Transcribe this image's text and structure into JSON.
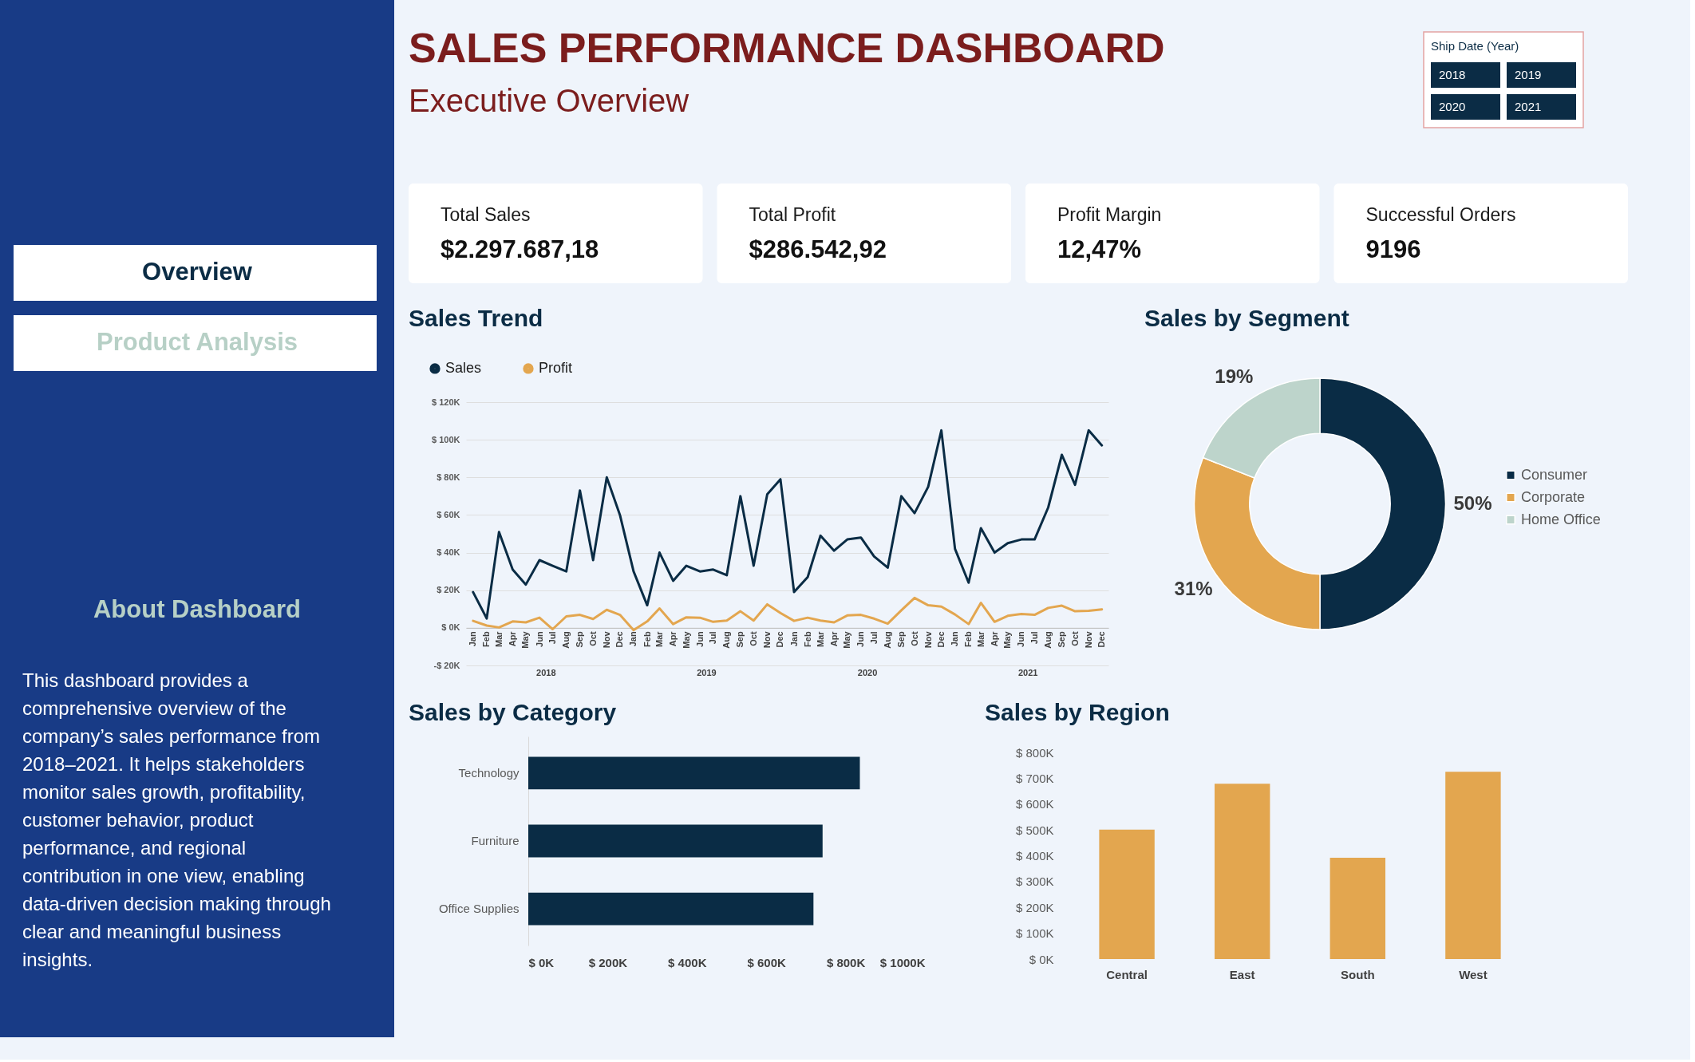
{
  "chart_data": [
    {
      "type": "other",
      "categories": [
        "Overview",
        "Product Analysis"
      ]
    },
    {
      "type": "other",
      "title": "About Dashboard",
      "annotations": [
        "This dashboard provides a comprehensive overview of the company’s sales performance from 2018–2021. It helps stakeholders monitor sales growth, profitability, customer behavior, product performance, and regional contribution in one view, enabling data-driven decision making through clear and meaningful business insights."
      ]
    },
    {
      "type": "other",
      "title": "SALES PERFORMANCE DASHBOARD",
      "subtitle": "Executive Overview"
    },
    {
      "type": "other",
      "title": "Ship Date (Year)",
      "categories": [
        "2018",
        "2019",
        "2020",
        "2021"
      ]
    },
    {
      "type": "other",
      "categories": [
        "Total Sales",
        "Total Profit",
        "Profit Margin",
        "Successful Orders"
      ],
      "value_labels": [
        "$2.297.687,18",
        "$286.542,92",
        "12,47%",
        "9196"
      ]
    },
    {
      "type": "line",
      "title": "Sales Trend",
      "legend": "top left",
      "grid": "y",
      "x": [
        "2018-01",
        "2018-02",
        "2018-03",
        "2018-04",
        "2018-05",
        "2018-06",
        "2018-07",
        "2018-08",
        "2018-09",
        "2018-10",
        "2018-11",
        "2018-12",
        "2019-01",
        "2019-02",
        "2019-03",
        "2019-04",
        "2019-05",
        "2019-06",
        "2019-07",
        "2019-08",
        "2019-09",
        "2019-10",
        "2019-11",
        "2019-12",
        "2020-01",
        "2020-02",
        "2020-03",
        "2020-04",
        "2020-05",
        "2020-06",
        "2020-07",
        "2020-08",
        "2020-09",
        "2020-10",
        "2020-11",
        "2020-12",
        "2021-01",
        "2021-02",
        "2021-03",
        "2021-04",
        "2021-05",
        "2021-06",
        "2021-07",
        "2021-08",
        "2021-09",
        "2021-10",
        "2021-11",
        "2021-12"
      ],
      "xlim": [
        "2017-12-16",
        "2021-12-16"
      ],
      "xticks": [
        {
          "value": "2018-01",
          "label": "Jan"
        },
        {
          "value": "2018-02",
          "label": "Feb"
        },
        {
          "value": "2018-03",
          "label": "Mar"
        },
        {
          "value": "2018-04",
          "label": "Apr"
        },
        {
          "value": "2018-05",
          "label": "May"
        },
        {
          "value": "2018-06",
          "label": "Jun"
        },
        {
          "value": "2018-07",
          "label": "Jul"
        },
        {
          "value": "2018-08",
          "label": "Aug"
        },
        {
          "value": "2018-09",
          "label": "Sep"
        },
        {
          "value": "2018-10",
          "label": "Oct"
        },
        {
          "value": "2018-11",
          "label": "Nov"
        },
        {
          "value": "2018-12",
          "label": "Dec"
        },
        {
          "value": "2019-01",
          "label": "Jan"
        },
        {
          "value": "2019-02",
          "label": "Feb"
        },
        {
          "value": "2019-03",
          "label": "Mar"
        },
        {
          "value": "2019-04",
          "label": "Apr"
        },
        {
          "value": "2019-05",
          "label": "May"
        },
        {
          "value": "2019-06",
          "label": "Jun"
        },
        {
          "value": "2019-07",
          "label": "Jul"
        },
        {
          "value": "2019-08",
          "label": "Aug"
        },
        {
          "value": "2019-09",
          "label": "Sep"
        },
        {
          "value": "2019-10",
          "label": "Oct"
        },
        {
          "value": "2019-11",
          "label": "Nov"
        },
        {
          "value": "2019-12",
          "label": "Dec"
        },
        {
          "value": "2020-01",
          "label": "Jan"
        },
        {
          "value": "2020-02",
          "label": "Feb"
        },
        {
          "value": "2020-03",
          "label": "Mar"
        },
        {
          "value": "2020-04",
          "label": "Apr"
        },
        {
          "value": "2020-05",
          "label": "May"
        },
        {
          "value": "2020-06",
          "label": "Jun"
        },
        {
          "value": "2020-07",
          "label": "Jul"
        },
        {
          "value": "2020-08",
          "label": "Aug"
        },
        {
          "value": "2020-09",
          "label": "Sep"
        },
        {
          "value": "2020-10",
          "label": "Oct"
        },
        {
          "value": "2020-11",
          "label": "Nov"
        },
        {
          "value": "2020-12",
          "label": "Dec"
        },
        {
          "value": "2021-01",
          "label": "Jan"
        },
        {
          "value": "2021-02",
          "label": "Feb"
        },
        {
          "value": "2021-03",
          "label": "Mar"
        },
        {
          "value": "2021-04",
          "label": "Apr"
        },
        {
          "value": "2021-05",
          "label": "May"
        },
        {
          "value": "2021-06",
          "label": "Jun"
        },
        {
          "value": "2021-07",
          "label": "Jul"
        },
        {
          "value": "2021-08",
          "label": "Aug"
        },
        {
          "value": "2021-09",
          "label": "Sep"
        },
        {
          "value": "2021-10",
          "label": "Oct"
        },
        {
          "value": "2021-11",
          "label": "Nov"
        },
        {
          "value": "2021-12",
          "label": "Dec"
        }
      ],
      "x2lim": [
        "2017-12-16",
        "2021-12-16"
      ],
      "x2ticks": [
        {
          "value": "2018-06-16",
          "label": "2018"
        },
        {
          "value": "2019-06-16",
          "label": "2019"
        },
        {
          "value": "2020-06-16",
          "label": "2020"
        },
        {
          "value": "2021-06-16",
          "label": "2021"
        }
      ],
      "ylim": [
        -20000,
        120000
      ],
      "yticks": [
        {
          "value": -20000,
          "label": "-$ 20K"
        },
        {
          "value": 0,
          "label": "$ 0K"
        },
        {
          "value": 20000,
          "label": "$ 20K"
        },
        {
          "value": 40000,
          "label": "$ 40K"
        },
        {
          "value": 60000,
          "label": "$ 60K"
        },
        {
          "value": 80000,
          "label": "$ 80K"
        },
        {
          "value": 100000,
          "label": "$ 100K"
        },
        {
          "value": 120000,
          "label": "$ 120K"
        }
      ],
      "series": [
        {
          "name": "Sales",
          "color": "#0a2c45",
          "values": [
            19000,
            5000,
            51000,
            31000,
            23000,
            36000,
            33000,
            30000,
            73000,
            36000,
            80000,
            60000,
            30000,
            12000,
            40000,
            25000,
            33000,
            30000,
            31000,
            28000,
            70000,
            33000,
            71000,
            79000,
            19000,
            27000,
            49000,
            41000,
            47000,
            48000,
            38000,
            32000,
            70000,
            61000,
            75000,
            105000,
            42000,
            24000,
            53000,
            40000,
            45000,
            47000,
            47000,
            64000,
            92000,
            76000,
            105000,
            97000
          ]
        },
        {
          "name": "Profit",
          "color": "#e3a64f",
          "values": [
            3700,
            1200,
            200,
            3400,
            2900,
            5400,
            -700,
            6100,
            6900,
            4700,
            9600,
            6900,
            -1200,
            3400,
            10300,
            2000,
            5600,
            5400,
            3200,
            3900,
            8800,
            3900,
            12500,
            7900,
            3700,
            5400,
            3900,
            2900,
            6600,
            6900,
            4900,
            2200,
            9300,
            15900,
            12000,
            11300,
            7100,
            2000,
            13300,
            3200,
            6400,
            7400,
            6900,
            10600,
            11800,
            8800,
            9100,
            9800
          ]
        }
      ]
    },
    {
      "type": "donut",
      "title": "Sales by Segment",
      "legend": "right",
      "categories": [
        "Consumer",
        "Corporate",
        "Home Office"
      ],
      "values": [
        50,
        31,
        19
      ],
      "colors": [
        "#0a2c45",
        "#e3a64f",
        "#bdd4cb"
      ],
      "value_labels": [
        "50%",
        "31%",
        "19%"
      ]
    },
    {
      "type": "bar",
      "orientation": "horizontal",
      "title": "Sales by Category",
      "categories": [
        "Technology",
        "Furniture",
        "Office Supplies"
      ],
      "values": [
        836000,
        742000,
        719000
      ],
      "color": "#0a2c45",
      "xlim": [
        0,
        1000000
      ],
      "xticks": [
        {
          "value": 0,
          "label": "$ 0K"
        },
        {
          "value": 200000,
          "label": "$ 200K"
        },
        {
          "value": 400000,
          "label": "$ 400K"
        },
        {
          "value": 600000,
          "label": "$ 600K"
        },
        {
          "value": 800000,
          "label": "$ 800K"
        },
        {
          "value": 1000000,
          "label": "$ 1000K"
        }
      ]
    },
    {
      "type": "bar",
      "title": "Sales by Region",
      "categories": [
        "Central",
        "East",
        "South",
        "West"
      ],
      "values": [
        501000,
        679000,
        392000,
        725000
      ],
      "color": "#e3a64f",
      "ylim": [
        0,
        800000
      ],
      "yticks": [
        {
          "value": 0,
          "label": "$ 0K"
        },
        {
          "value": 100000,
          "label": "$ 100K"
        },
        {
          "value": 200000,
          "label": "$ 200K"
        },
        {
          "value": 300000,
          "label": "$ 300K"
        },
        {
          "value": 400000,
          "label": "$ 400K"
        },
        {
          "value": 500000,
          "label": "$ 500K"
        },
        {
          "value": 600000,
          "label": "$ 600K"
        },
        {
          "value": 700000,
          "label": "$ 700K"
        },
        {
          "value": 800000,
          "label": "$ 800K"
        }
      ]
    }
  ]
}
